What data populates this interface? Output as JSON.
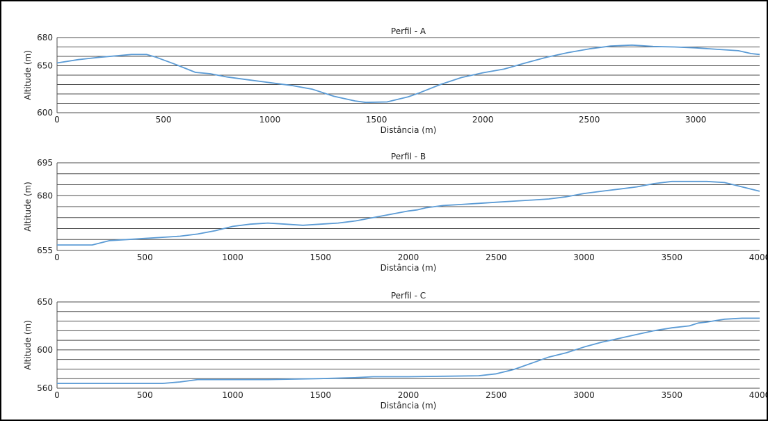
{
  "colors": {
    "line": "#5b9bd5",
    "grid": "#4d4d4d",
    "frame": "#000000"
  },
  "chart_data": [
    {
      "type": "line",
      "title": "Perfil - A",
      "xlabel": "Distância (m)",
      "ylabel": "Altitude (m)",
      "xlim": [
        0,
        3300
      ],
      "ylim": [
        600,
        680
      ],
      "xticks": [
        0,
        500,
        1000,
        1500,
        2000,
        2500,
        3000
      ],
      "yticks": [
        600,
        650,
        680
      ],
      "grid_y": [
        600,
        610,
        620,
        630,
        640,
        650,
        660,
        670,
        680
      ],
      "grid": true,
      "series": [
        {
          "x": [
            0,
            100,
            200,
            300,
            350,
            420,
            460,
            550,
            650,
            720,
            800,
            900,
            1000,
            1100,
            1200,
            1300,
            1400,
            1450,
            1550,
            1650,
            1700,
            1800,
            1900,
            2000,
            2100,
            2200,
            2300,
            2400,
            2500,
            2600,
            2700,
            2800,
            2900,
            3000,
            3100,
            3200,
            3260,
            3300
          ],
          "y": [
            653,
            656.5,
            659,
            661,
            662,
            662,
            659.5,
            652,
            643,
            641.5,
            638,
            635,
            632,
            629,
            625,
            617.5,
            612.5,
            611,
            611.5,
            617,
            621,
            630,
            637.5,
            642.5,
            646.5,
            653,
            659,
            664,
            668,
            671,
            672,
            670.5,
            670,
            669,
            667.5,
            666,
            663,
            662
          ]
        }
      ]
    },
    {
      "type": "line",
      "title": "Perfil - B",
      "xlabel": "Distância (m)",
      "ylabel": "Altitude (m)",
      "xlim": [
        0,
        4000
      ],
      "ylim": [
        655,
        695
      ],
      "xticks": [
        0,
        500,
        1000,
        1500,
        2000,
        2500,
        3000,
        3500,
        4000
      ],
      "yticks": [
        655,
        680,
        695
      ],
      "grid_y": [
        655,
        660,
        665,
        670,
        675,
        680,
        685,
        690,
        695
      ],
      "grid": true,
      "series": [
        {
          "x": [
            0,
            100,
            200,
            300,
            400,
            500,
            600,
            700,
            800,
            900,
            1000,
            1100,
            1200,
            1300,
            1400,
            1500,
            1600,
            1700,
            1800,
            1900,
            2000,
            2050,
            2100,
            2200,
            2300,
            2400,
            2500,
            2600,
            2700,
            2800,
            2900,
            3000,
            3050,
            3100,
            3200,
            3300,
            3400,
            3500,
            3600,
            3700,
            3800,
            3900,
            4000
          ],
          "y": [
            657.5,
            657.5,
            657.5,
            659.5,
            660,
            660.5,
            661,
            661.5,
            662.5,
            664,
            666,
            667,
            667.5,
            667,
            666.5,
            667,
            667.5,
            668.5,
            670,
            671.5,
            673,
            673.5,
            674.5,
            675.5,
            676,
            676.5,
            677,
            677.5,
            678,
            678.5,
            679.5,
            681,
            681.5,
            682,
            683,
            684,
            685.5,
            686.5,
            686.5,
            686.5,
            686,
            684,
            682
          ]
        }
      ]
    },
    {
      "type": "line",
      "title": "Perfil - C",
      "xlabel": "Distância (m)",
      "ylabel": "Altitude (m)",
      "xlim": [
        0,
        4000
      ],
      "ylim": [
        560,
        650
      ],
      "xticks": [
        0,
        500,
        1000,
        1500,
        2000,
        2500,
        3000,
        3500,
        4000
      ],
      "yticks": [
        560,
        600,
        650
      ],
      "grid_y": [
        560,
        570,
        580,
        590,
        600,
        610,
        620,
        630,
        640,
        650
      ],
      "grid": true,
      "series": [
        {
          "x": [
            0,
            200,
            400,
            600,
            700,
            800,
            1000,
            1200,
            1500,
            1700,
            1800,
            2000,
            2200,
            2400,
            2500,
            2600,
            2700,
            2800,
            2900,
            3000,
            3100,
            3200,
            3300,
            3400,
            3500,
            3600,
            3650,
            3700,
            3800,
            3900,
            4000
          ],
          "y": [
            565,
            565,
            565,
            565,
            566.5,
            569,
            569,
            569,
            570,
            571,
            572,
            572,
            572.5,
            573,
            575,
            579.5,
            586,
            592.5,
            597,
            603,
            608,
            612,
            616,
            620,
            623,
            625,
            628,
            629,
            632,
            633,
            633
          ]
        }
      ]
    }
  ]
}
